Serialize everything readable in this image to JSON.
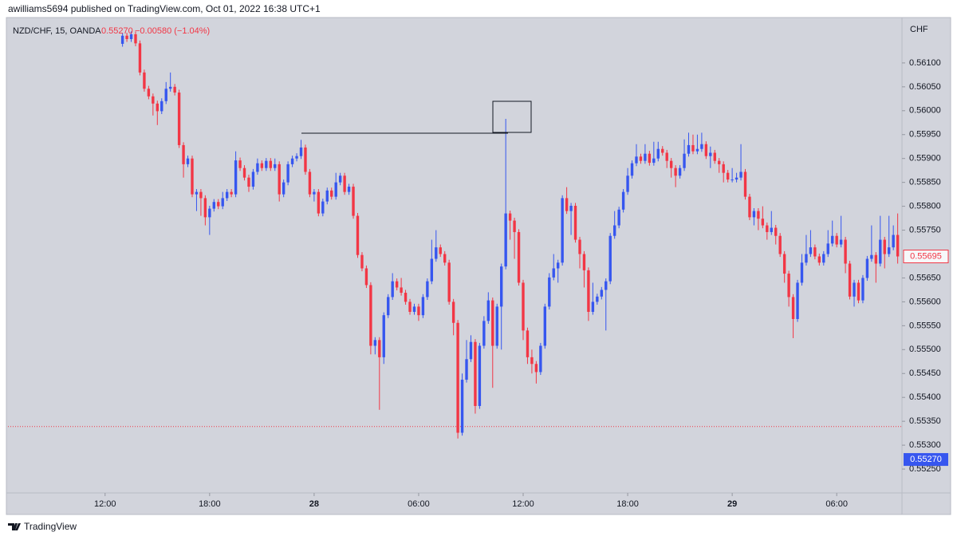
{
  "header": "awilliams5694 published on TradingView.com, Oct 01, 2022 16:38 UTC+1",
  "footer": "TradingView",
  "chart_data": {
    "type": "candlestick",
    "legend": {
      "symbol": "NZD/CHF, 15, OANDA",
      "price": "0.55270",
      "change": "−0.00580 (−1.04%)"
    },
    "y_unit": "CHF",
    "up_color": "#3656ef",
    "down_color": "#f23645",
    "ylim": [
      0.552,
      0.56195
    ],
    "yticks": [
      {
        "value": 0.561,
        "label": "0.56100"
      },
      {
        "value": 0.5605,
        "label": "0.56050"
      },
      {
        "value": 0.56,
        "label": "0.56000"
      },
      {
        "value": 0.5595,
        "label": "0.55950"
      },
      {
        "value": 0.559,
        "label": "0.55900"
      },
      {
        "value": 0.5585,
        "label": "0.55850"
      },
      {
        "value": 0.558,
        "label": "0.55800"
      },
      {
        "value": 0.5575,
        "label": "0.55750"
      },
      {
        "value": 0.5565,
        "label": "0.55650"
      },
      {
        "value": 0.556,
        "label": "0.55600"
      },
      {
        "value": 0.5555,
        "label": "0.55550"
      },
      {
        "value": 0.555,
        "label": "0.55500"
      },
      {
        "value": 0.5545,
        "label": "0.55450"
      },
      {
        "value": 0.554,
        "label": "0.55400"
      },
      {
        "value": 0.5535,
        "label": "0.55350"
      },
      {
        "value": 0.553,
        "label": "0.55300"
      },
      {
        "value": 0.5525,
        "label": "0.55250"
      }
    ],
    "xlim": [
      -26.3,
      178.8
    ],
    "xticks": [
      {
        "value": -4,
        "label": "12:00"
      },
      {
        "value": 20,
        "label": "18:00"
      },
      {
        "value": 44,
        "label": "28"
      },
      {
        "value": 68,
        "label": "06:00"
      },
      {
        "value": 92,
        "label": "12:00"
      },
      {
        "value": 116,
        "label": "18:00"
      },
      {
        "value": 140,
        "label": "29"
      },
      {
        "value": 164,
        "label": "06:00"
      }
    ],
    "price_tag": {
      "value": 0.5527,
      "label": "0.55270"
    },
    "price_line": 0.55339,
    "candles": [
      [
        0.5614,
        0.56163,
        0.56134,
        0.56157
      ],
      [
        0.56157,
        0.56163,
        0.56144,
        0.5615
      ],
      [
        0.5615,
        0.56166,
        0.56144,
        0.5616
      ],
      [
        0.5616,
        0.56166,
        0.56135,
        0.56141
      ],
      [
        0.56141,
        0.56147,
        0.56074,
        0.5608
      ],
      [
        0.5608,
        0.56086,
        0.5604,
        0.56046
      ],
      [
        0.56046,
        0.56052,
        0.56024,
        0.5603
      ],
      [
        0.5603,
        0.56036,
        0.5599,
        0.56015
      ],
      [
        0.56015,
        0.56021,
        0.5597,
        0.55999
      ],
      [
        0.55999,
        0.56026,
        0.55993,
        0.5602
      ],
      [
        0.5602,
        0.5606,
        0.56014,
        0.56046
      ],
      [
        0.56046,
        0.5608,
        0.5604,
        0.5605
      ],
      [
        0.5605,
        0.56056,
        0.56032,
        0.56038
      ],
      [
        0.56038,
        0.56044,
        0.55922,
        0.55928
      ],
      [
        0.55928,
        0.55934,
        0.5586,
        0.55888
      ],
      [
        0.55888,
        0.55906,
        0.55882,
        0.559
      ],
      [
        0.559,
        0.55906,
        0.55819,
        0.55825
      ],
      [
        0.55825,
        0.55836,
        0.5579,
        0.5583
      ],
      [
        0.5583,
        0.55836,
        0.5578,
        0.55817
      ],
      [
        0.55817,
        0.55823,
        0.5576,
        0.55777
      ],
      [
        0.55777,
        0.55801,
        0.5574,
        0.55795
      ],
      [
        0.55795,
        0.55815,
        0.55789,
        0.55809
      ],
      [
        0.55809,
        0.55815,
        0.55794,
        0.558
      ],
      [
        0.558,
        0.5583,
        0.55794,
        0.55817
      ],
      [
        0.55817,
        0.55836,
        0.55811,
        0.5583
      ],
      [
        0.5583,
        0.55836,
        0.55819,
        0.55825
      ],
      [
        0.55825,
        0.55915,
        0.55819,
        0.55896
      ],
      [
        0.55896,
        0.55902,
        0.55874,
        0.5588
      ],
      [
        0.5588,
        0.55886,
        0.55854,
        0.5586
      ],
      [
        0.5586,
        0.55866,
        0.5583,
        0.55841
      ],
      [
        0.55841,
        0.55878,
        0.55835,
        0.55872
      ],
      [
        0.55872,
        0.559,
        0.55866,
        0.5589
      ],
      [
        0.5589,
        0.55896,
        0.55874,
        0.5588
      ],
      [
        0.5588,
        0.55901,
        0.55874,
        0.55895
      ],
      [
        0.55895,
        0.55901,
        0.55874,
        0.5588
      ],
      [
        0.5588,
        0.559,
        0.55874,
        0.55888
      ],
      [
        0.55888,
        0.55894,
        0.5581,
        0.55825
      ],
      [
        0.55825,
        0.55856,
        0.55819,
        0.5585
      ],
      [
        0.5585,
        0.55894,
        0.55844,
        0.55888
      ],
      [
        0.55888,
        0.55906,
        0.55882,
        0.559
      ],
      [
        0.559,
        0.55911,
        0.55894,
        0.55905
      ],
      [
        0.55905,
        0.55939,
        0.55899,
        0.55923
      ],
      [
        0.55923,
        0.55929,
        0.55866,
        0.55872
      ],
      [
        0.55872,
        0.55878,
        0.55819,
        0.55825
      ],
      [
        0.55825,
        0.55836,
        0.5581,
        0.5583
      ],
      [
        0.5583,
        0.55836,
        0.55779,
        0.55785
      ],
      [
        0.55785,
        0.55816,
        0.55779,
        0.5581
      ],
      [
        0.5581,
        0.55839,
        0.55804,
        0.55833
      ],
      [
        0.55833,
        0.55839,
        0.55814,
        0.5582
      ],
      [
        0.5582,
        0.5587,
        0.55814,
        0.5585
      ],
      [
        0.5585,
        0.5587,
        0.55844,
        0.55864
      ],
      [
        0.55864,
        0.5587,
        0.55824,
        0.5583
      ],
      [
        0.5583,
        0.55847,
        0.55824,
        0.55841
      ],
      [
        0.55841,
        0.55847,
        0.55774,
        0.5578
      ],
      [
        0.5578,
        0.55786,
        0.55692,
        0.55698
      ],
      [
        0.55698,
        0.55704,
        0.55664,
        0.5567
      ],
      [
        0.5567,
        0.55676,
        0.55629,
        0.55635
      ],
      [
        0.55635,
        0.55641,
        0.5549,
        0.55508
      ],
      [
        0.55508,
        0.55526,
        0.5549,
        0.5552
      ],
      [
        0.5552,
        0.55526,
        0.55374,
        0.55484
      ],
      [
        0.55484,
        0.55578,
        0.5547,
        0.55572
      ],
      [
        0.55572,
        0.55616,
        0.55566,
        0.5561
      ],
      [
        0.5561,
        0.5566,
        0.55604,
        0.55643
      ],
      [
        0.55643,
        0.55649,
        0.55624,
        0.5563
      ],
      [
        0.5563,
        0.5565,
        0.55613,
        0.55619
      ],
      [
        0.55619,
        0.55625,
        0.55594,
        0.556
      ],
      [
        0.556,
        0.55606,
        0.55573,
        0.55579
      ],
      [
        0.55579,
        0.55596,
        0.55573,
        0.5559
      ],
      [
        0.5559,
        0.55596,
        0.5556,
        0.55572
      ],
      [
        0.55572,
        0.55616,
        0.55566,
        0.5561
      ],
      [
        0.5561,
        0.55649,
        0.55604,
        0.55643
      ],
      [
        0.55643,
        0.5573,
        0.55637,
        0.5569
      ],
      [
        0.5569,
        0.5575,
        0.55684,
        0.55714
      ],
      [
        0.55714,
        0.5572,
        0.55694,
        0.557
      ],
      [
        0.557,
        0.55706,
        0.55676,
        0.55682
      ],
      [
        0.55682,
        0.55688,
        0.55594,
        0.556
      ],
      [
        0.556,
        0.55606,
        0.5553,
        0.55556
      ],
      [
        0.55556,
        0.55562,
        0.55314,
        0.55326
      ],
      [
        0.55326,
        0.5545,
        0.5532,
        0.55437
      ],
      [
        0.55437,
        0.5552,
        0.55431,
        0.5548
      ],
      [
        0.5548,
        0.5553,
        0.55474,
        0.55516
      ],
      [
        0.55516,
        0.55522,
        0.55366,
        0.55382
      ],
      [
        0.55382,
        0.55514,
        0.55376,
        0.55508
      ],
      [
        0.55508,
        0.5557,
        0.55502,
        0.5556
      ],
      [
        0.5556,
        0.5562,
        0.55554,
        0.55603
      ],
      [
        0.55603,
        0.55609,
        0.5542,
        0.55508
      ],
      [
        0.55508,
        0.55596,
        0.55502,
        0.5559
      ],
      [
        0.5559,
        0.5568,
        0.555,
        0.55674
      ],
      [
        0.55674,
        0.55983,
        0.55668,
        0.55785
      ],
      [
        0.55785,
        0.55791,
        0.5573,
        0.5577
      ],
      [
        0.5577,
        0.55776,
        0.5569,
        0.55746
      ],
      [
        0.55746,
        0.55752,
        0.55634,
        0.5564
      ],
      [
        0.5564,
        0.55646,
        0.5552,
        0.5554
      ],
      [
        0.5554,
        0.55546,
        0.5547,
        0.55484
      ],
      [
        0.55484,
        0.555,
        0.5545,
        0.5547
      ],
      [
        0.5547,
        0.55476,
        0.55429,
        0.55453
      ],
      [
        0.55453,
        0.55514,
        0.55447,
        0.55508
      ],
      [
        0.55508,
        0.55596,
        0.55502,
        0.5559
      ],
      [
        0.5559,
        0.5566,
        0.55584,
        0.55651
      ],
      [
        0.55651,
        0.557,
        0.55645,
        0.5567
      ],
      [
        0.5567,
        0.55688,
        0.5564,
        0.55682
      ],
      [
        0.55682,
        0.55823,
        0.55676,
        0.55817
      ],
      [
        0.55817,
        0.5584,
        0.55784,
        0.5579
      ],
      [
        0.5579,
        0.55807,
        0.5574,
        0.55801
      ],
      [
        0.55801,
        0.55807,
        0.55724,
        0.5573
      ],
      [
        0.5573,
        0.55736,
        0.5567,
        0.557
      ],
      [
        0.557,
        0.55706,
        0.5563,
        0.55666
      ],
      [
        0.55666,
        0.55672,
        0.5556,
        0.55579
      ],
      [
        0.55579,
        0.5564,
        0.55573,
        0.556
      ],
      [
        0.556,
        0.55617,
        0.55594,
        0.55611
      ],
      [
        0.55611,
        0.55631,
        0.55605,
        0.55625
      ],
      [
        0.55625,
        0.55649,
        0.5554,
        0.55643
      ],
      [
        0.55643,
        0.55744,
        0.55637,
        0.55738
      ],
      [
        0.55738,
        0.5579,
        0.55732,
        0.5576
      ],
      [
        0.5576,
        0.55799,
        0.55754,
        0.55793
      ],
      [
        0.55793,
        0.55836,
        0.55787,
        0.5583
      ],
      [
        0.5583,
        0.5588,
        0.55824,
        0.55864
      ],
      [
        0.55864,
        0.55896,
        0.55858,
        0.5589
      ],
      [
        0.5589,
        0.5593,
        0.55884,
        0.55904
      ],
      [
        0.55904,
        0.5591,
        0.55889,
        0.55895
      ],
      [
        0.55895,
        0.5593,
        0.55889,
        0.5591
      ],
      [
        0.5591,
        0.55916,
        0.55885,
        0.55891
      ],
      [
        0.55891,
        0.55935,
        0.55885,
        0.559
      ],
      [
        0.559,
        0.55935,
        0.55894,
        0.5592
      ],
      [
        0.5592,
        0.55926,
        0.55906,
        0.55912
      ],
      [
        0.55912,
        0.55918,
        0.5588,
        0.55895
      ],
      [
        0.55895,
        0.55901,
        0.5586,
        0.5588
      ],
      [
        0.5588,
        0.55886,
        0.5584,
        0.55864
      ],
      [
        0.55864,
        0.55886,
        0.55858,
        0.5588
      ],
      [
        0.5588,
        0.5594,
        0.55874,
        0.5591
      ],
      [
        0.5591,
        0.55954,
        0.55904,
        0.55928
      ],
      [
        0.55928,
        0.5595,
        0.55909,
        0.55915
      ],
      [
        0.55915,
        0.5595,
        0.55909,
        0.5592
      ],
      [
        0.5592,
        0.55954,
        0.55914,
        0.5593
      ],
      [
        0.5593,
        0.55936,
        0.55899,
        0.55905
      ],
      [
        0.55905,
        0.55925,
        0.5588,
        0.55912
      ],
      [
        0.55912,
        0.55918,
        0.55889,
        0.55895
      ],
      [
        0.55895,
        0.55901,
        0.5587,
        0.55888
      ],
      [
        0.55888,
        0.55894,
        0.5585,
        0.5587
      ],
      [
        0.5587,
        0.55876,
        0.5585,
        0.55856
      ],
      [
        0.55856,
        0.5588,
        0.5585,
        0.55856
      ],
      [
        0.55856,
        0.5587,
        0.5585,
        0.5586
      ],
      [
        0.5586,
        0.5593,
        0.55854,
        0.55872
      ],
      [
        0.55872,
        0.55878,
        0.55814,
        0.5582
      ],
      [
        0.5582,
        0.55826,
        0.55771,
        0.55777
      ],
      [
        0.55777,
        0.55796,
        0.5576,
        0.5579
      ],
      [
        0.5579,
        0.55796,
        0.5575,
        0.55774
      ],
      [
        0.55774,
        0.558,
        0.55754,
        0.5576
      ],
      [
        0.5576,
        0.55766,
        0.5573,
        0.55746
      ],
      [
        0.55746,
        0.5579,
        0.5574,
        0.55755
      ],
      [
        0.55755,
        0.55761,
        0.5572,
        0.55738
      ],
      [
        0.55738,
        0.55744,
        0.55694,
        0.557
      ],
      [
        0.557,
        0.55706,
        0.5564,
        0.55659
      ],
      [
        0.55659,
        0.55665,
        0.5559,
        0.5561
      ],
      [
        0.5561,
        0.55616,
        0.55524,
        0.55564
      ],
      [
        0.55564,
        0.55646,
        0.55558,
        0.5564
      ],
      [
        0.5564,
        0.557,
        0.55634,
        0.55682
      ],
      [
        0.55682,
        0.5574,
        0.55676,
        0.557
      ],
      [
        0.557,
        0.5575,
        0.55694,
        0.55714
      ],
      [
        0.55714,
        0.5572,
        0.55689,
        0.55695
      ],
      [
        0.55695,
        0.55701,
        0.55676,
        0.55682
      ],
      [
        0.55682,
        0.55706,
        0.55676,
        0.557
      ],
      [
        0.557,
        0.5575,
        0.55694,
        0.55722
      ],
      [
        0.55722,
        0.5577,
        0.55716,
        0.55738
      ],
      [
        0.55738,
        0.55744,
        0.55714,
        0.5572
      ],
      [
        0.5572,
        0.5578,
        0.55714,
        0.5573
      ],
      [
        0.5573,
        0.55736,
        0.5566,
        0.5568
      ],
      [
        0.5568,
        0.55686,
        0.55605,
        0.55611
      ],
      [
        0.55611,
        0.55646,
        0.5559,
        0.5564
      ],
      [
        0.5564,
        0.55646,
        0.55597,
        0.55603
      ],
      [
        0.55603,
        0.55656,
        0.55597,
        0.5565
      ],
      [
        0.5565,
        0.55696,
        0.55644,
        0.5569
      ],
      [
        0.5569,
        0.5576,
        0.55684,
        0.55698
      ],
      [
        0.55698,
        0.55704,
        0.5564,
        0.5568
      ],
      [
        0.5568,
        0.5578,
        0.55674,
        0.5573
      ],
      [
        0.5573,
        0.55736,
        0.5567,
        0.557
      ],
      [
        0.557,
        0.5578,
        0.55694,
        0.55714
      ],
      [
        0.55714,
        0.5576,
        0.55708,
        0.5574
      ],
      [
        0.5574,
        0.55785,
        0.5568,
        0.55695
      ]
    ]
  }
}
